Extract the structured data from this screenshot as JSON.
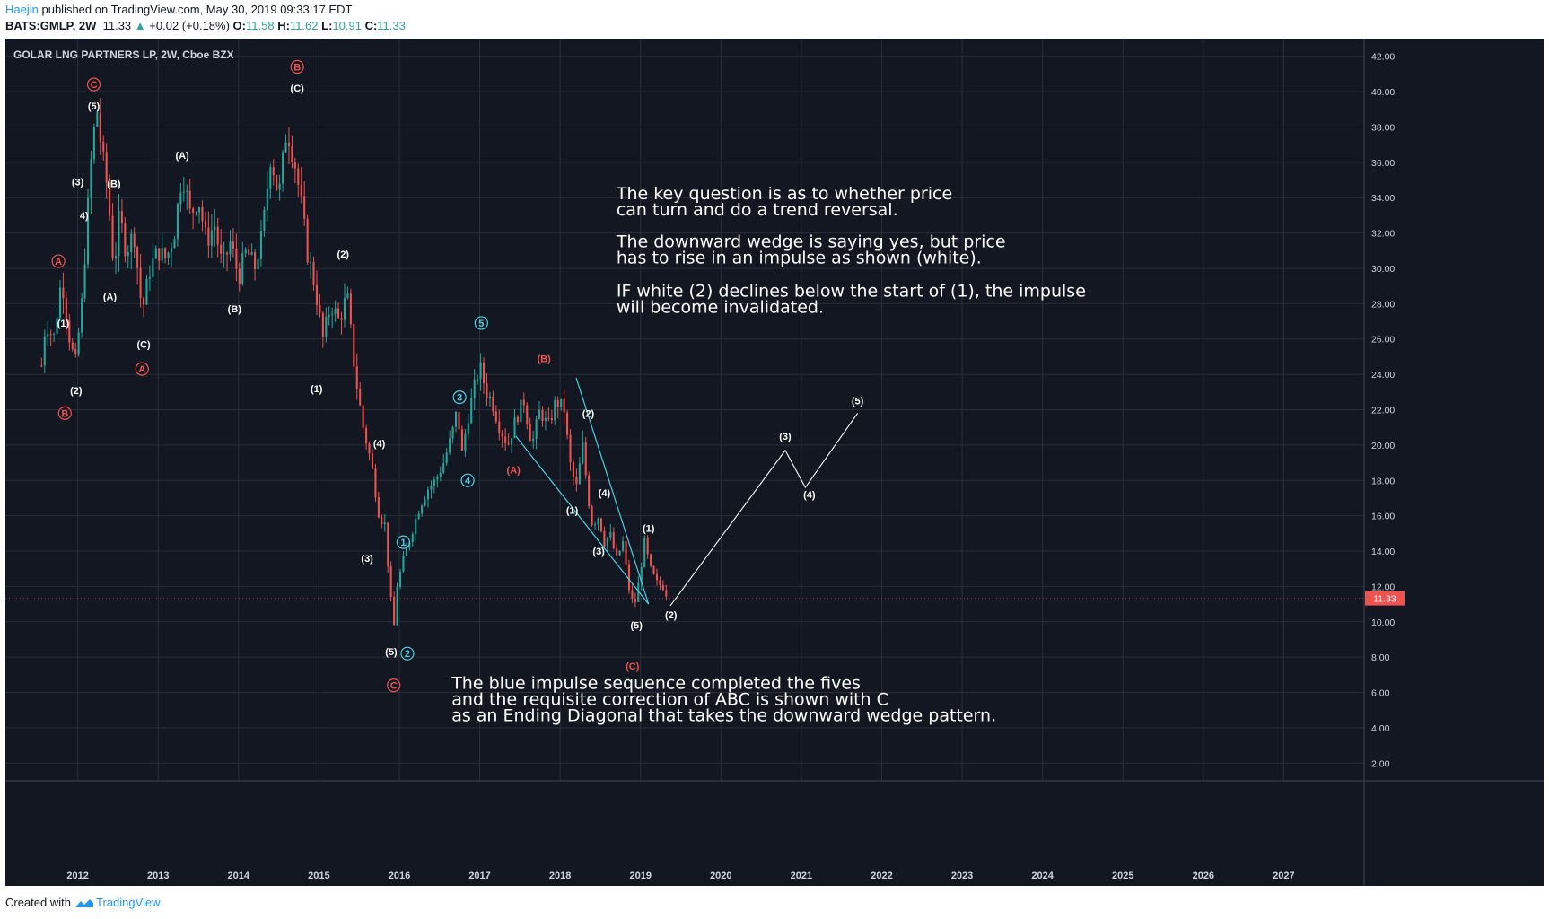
{
  "header": {
    "publisher": "Haejin",
    "published_text": "published on TradingView.com, May 30, 2019 09:33:17 EDT",
    "symbol": "BATS:GMLP, 2W",
    "last": "11.33",
    "change_arrow": "▲",
    "change": "+0.02 (+0.18%)",
    "o_label": "O:",
    "o_value": "11.58",
    "h_label": "H:",
    "h_value": "11.62",
    "l_label": "L:",
    "l_value": "10.91",
    "c_label": "C:",
    "c_value": "11.33"
  },
  "footer": {
    "created_with": "Created with",
    "brand": "TradingView"
  },
  "colors": {
    "background": "#131722",
    "grid": "#2a2e39",
    "up": "#26a69a",
    "down": "#ef5350",
    "wave_white": "#ffffff",
    "wave_red": "#ef5350",
    "wave_cyan": "#4dd0e1",
    "price_tag": "#ef5350"
  },
  "chart_data": {
    "type": "candlestick",
    "title": "GOLAR LNG PARTNERS LP, 2W, Cboe BZX",
    "last_price_label": "11.33",
    "y_range": [
      1,
      43
    ],
    "y_ticks": [
      "2.00",
      "4.00",
      "6.00",
      "8.00",
      "10.00",
      "12.00",
      "14.00",
      "16.00",
      "18.00",
      "20.00",
      "22.00",
      "24.00",
      "26.00",
      "28.00",
      "30.00",
      "32.00",
      "34.00",
      "36.00",
      "38.00",
      "40.00",
      "42.00"
    ],
    "x_range": [
      2011.1,
      2028.0
    ],
    "x_ticks": [
      "2012",
      "2013",
      "2014",
      "2015",
      "2016",
      "2017",
      "2018",
      "2019",
      "2020",
      "2021",
      "2022",
      "2023",
      "2024",
      "2025",
      "2026",
      "2027"
    ],
    "price_path": [
      [
        2011.55,
        24.5
      ],
      [
        2011.6,
        27.0
      ],
      [
        2011.7,
        26.0
      ],
      [
        2011.8,
        29.5
      ],
      [
        2011.9,
        26.0
      ],
      [
        2011.97,
        24.5
      ],
      [
        2012.05,
        28.0
      ],
      [
        2012.12,
        33.0
      ],
      [
        2012.18,
        37.0
      ],
      [
        2012.24,
        39.0
      ],
      [
        2012.3,
        36.5
      ],
      [
        2012.37,
        34.5
      ],
      [
        2012.45,
        30.0
      ],
      [
        2012.52,
        33.0
      ],
      [
        2012.6,
        31.0
      ],
      [
        2012.7,
        32.0
      ],
      [
        2012.8,
        27.5
      ],
      [
        2012.9,
        30.0
      ],
      [
        2013.0,
        31.0
      ],
      [
        2013.1,
        30.5
      ],
      [
        2013.2,
        32.0
      ],
      [
        2013.3,
        35.5
      ],
      [
        2013.4,
        33.0
      ],
      [
        2013.5,
        34.0
      ],
      [
        2013.6,
        31.5
      ],
      [
        2013.7,
        32.5
      ],
      [
        2013.8,
        30.0
      ],
      [
        2013.9,
        31.5
      ],
      [
        2014.0,
        29.5
      ],
      [
        2014.1,
        31.0
      ],
      [
        2014.2,
        30.0
      ],
      [
        2014.3,
        32.0
      ],
      [
        2014.4,
        36.5
      ],
      [
        2014.5,
        34.0
      ],
      [
        2014.6,
        38.0
      ],
      [
        2014.7,
        36.0
      ],
      [
        2014.8,
        33.0
      ],
      [
        2014.85,
        31.0
      ],
      [
        2014.95,
        29.0
      ],
      [
        2015.05,
        26.0
      ],
      [
        2015.15,
        28.0
      ],
      [
        2015.25,
        27.0
      ],
      [
        2015.35,
        28.5
      ],
      [
        2015.45,
        24.0
      ],
      [
        2015.55,
        21.0
      ],
      [
        2015.65,
        19.0
      ],
      [
        2015.75,
        16.0
      ],
      [
        2015.82,
        15.5
      ],
      [
        2015.88,
        12.0
      ],
      [
        2015.93,
        9.5
      ],
      [
        2015.97,
        12.0
      ],
      [
        2016.05,
        13.5
      ],
      [
        2016.15,
        15.0
      ],
      [
        2016.25,
        16.5
      ],
      [
        2016.35,
        17.5
      ],
      [
        2016.45,
        18.0
      ],
      [
        2016.55,
        19.0
      ],
      [
        2016.65,
        20.5
      ],
      [
        2016.72,
        22.0
      ],
      [
        2016.78,
        19.5
      ],
      [
        2016.85,
        21.5
      ],
      [
        2016.92,
        23.0
      ],
      [
        2017.0,
        24.5
      ],
      [
        2017.08,
        23.0
      ],
      [
        2017.15,
        22.5
      ],
      [
        2017.25,
        21.0
      ],
      [
        2017.35,
        20.0
      ],
      [
        2017.45,
        21.5
      ],
      [
        2017.55,
        22.5
      ],
      [
        2017.65,
        20.0
      ],
      [
        2017.75,
        22.0
      ],
      [
        2017.85,
        21.0
      ],
      [
        2017.95,
        22.5
      ],
      [
        2018.05,
        22.0
      ],
      [
        2018.12,
        19.0
      ],
      [
        2018.2,
        17.5
      ],
      [
        2018.28,
        20.0
      ],
      [
        2018.35,
        17.0
      ],
      [
        2018.4,
        15.5
      ],
      [
        2018.48,
        16.0
      ],
      [
        2018.55,
        14.5
      ],
      [
        2018.62,
        15.0
      ],
      [
        2018.7,
        13.5
      ],
      [
        2018.78,
        14.5
      ],
      [
        2018.85,
        12.0
      ],
      [
        2018.92,
        10.8
      ],
      [
        2018.97,
        12.0
      ],
      [
        2019.05,
        14.5
      ],
      [
        2019.12,
        13.0
      ],
      [
        2019.2,
        12.2
      ],
      [
        2019.28,
        12.0
      ],
      [
        2019.35,
        11.3
      ]
    ],
    "projection_path": [
      [
        2019.37,
        10.9
      ],
      [
        2020.8,
        19.7
      ],
      [
        2021.05,
        17.6
      ],
      [
        2021.7,
        21.8
      ]
    ],
    "wedge_lines": [
      {
        "from": [
          2017.45,
          20.5
        ],
        "to": [
          2019.1,
          11.0
        ]
      },
      {
        "from": [
          2018.2,
          23.8
        ],
        "to": [
          2019.1,
          11.0
        ]
      }
    ],
    "wave_labels": [
      {
        "text": "A",
        "style": "red-circle",
        "x": 2011.76,
        "y": 30.2
      },
      {
        "text": "(1)",
        "style": "white",
        "x": 2011.82,
        "y": 26.7
      },
      {
        "text": "(2)",
        "style": "white",
        "x": 2011.98,
        "y": 22.9
      },
      {
        "text": "B",
        "style": "red-circle",
        "x": 2011.84,
        "y": 21.6
      },
      {
        "text": "C",
        "style": "red-circle",
        "x": 2012.2,
        "y": 40.2
      },
      {
        "text": "(5)",
        "style": "white",
        "x": 2012.2,
        "y": 39.0
      },
      {
        "text": "(3)",
        "style": "white",
        "x": 2012.0,
        "y": 34.7
      },
      {
        "text": "(B)",
        "style": "white",
        "x": 2012.45,
        "y": 34.6
      },
      {
        "text": "4)",
        "style": "white",
        "x": 2012.08,
        "y": 32.8
      },
      {
        "text": "(A)",
        "style": "white",
        "x": 2012.4,
        "y": 28.2
      },
      {
        "text": "(C)",
        "style": "white",
        "x": 2012.82,
        "y": 25.5
      },
      {
        "text": "A",
        "style": "red-circle",
        "x": 2012.8,
        "y": 24.1
      },
      {
        "text": "(A)",
        "style": "white",
        "x": 2013.3,
        "y": 36.2
      },
      {
        "text": "(B)",
        "style": "white",
        "x": 2013.95,
        "y": 27.5
      },
      {
        "text": "B",
        "style": "red-circle",
        "x": 2014.73,
        "y": 41.2
      },
      {
        "text": "(C)",
        "style": "white",
        "x": 2014.73,
        "y": 40.0
      },
      {
        "text": "(2)",
        "style": "white",
        "x": 2015.3,
        "y": 30.6
      },
      {
        "text": "(1)",
        "style": "white",
        "x": 2014.97,
        "y": 23.0
      },
      {
        "text": "(4)",
        "style": "white",
        "x": 2015.75,
        "y": 19.9
      },
      {
        "text": "(3)",
        "style": "white",
        "x": 2015.6,
        "y": 13.4
      },
      {
        "text": "(5)",
        "style": "white",
        "x": 2015.9,
        "y": 8.1
      },
      {
        "text": "C",
        "style": "red-circle",
        "x": 2015.93,
        "y": 6.2
      },
      {
        "text": "1",
        "style": "cyan-circle",
        "x": 2016.05,
        "y": 14.3
      },
      {
        "text": "2",
        "style": "cyan-circle",
        "x": 2016.1,
        "y": 8.0
      },
      {
        "text": "3",
        "style": "cyan-circle",
        "x": 2016.75,
        "y": 22.5
      },
      {
        "text": "4",
        "style": "cyan-circle",
        "x": 2016.85,
        "y": 17.8
      },
      {
        "text": "5",
        "style": "cyan-circle",
        "x": 2017.02,
        "y": 26.7
      },
      {
        "text": "(B)",
        "style": "red",
        "x": 2017.8,
        "y": 24.7
      },
      {
        "text": "(A)",
        "style": "red",
        "x": 2017.42,
        "y": 18.4
      },
      {
        "text": "(2)",
        "style": "white",
        "x": 2018.35,
        "y": 21.6
      },
      {
        "text": "(1)",
        "style": "white",
        "x": 2018.15,
        "y": 16.1
      },
      {
        "text": "(4)",
        "style": "white",
        "x": 2018.55,
        "y": 17.1
      },
      {
        "text": "(3)",
        "style": "white",
        "x": 2018.48,
        "y": 13.8
      },
      {
        "text": "(5)",
        "style": "white",
        "x": 2018.95,
        "y": 9.6
      },
      {
        "text": "(C)",
        "style": "red",
        "x": 2018.9,
        "y": 7.3
      },
      {
        "text": "(1)",
        "style": "white",
        "x": 2019.1,
        "y": 15.1
      },
      {
        "text": "(2)",
        "style": "white",
        "x": 2019.38,
        "y": 10.2
      },
      {
        "text": "(3)",
        "style": "white",
        "x": 2020.8,
        "y": 20.3
      },
      {
        "text": "(4)",
        "style": "white",
        "x": 2021.1,
        "y": 17.0
      },
      {
        "text": "(5)",
        "style": "white",
        "x": 2021.7,
        "y": 22.3
      }
    ],
    "annotations": [
      {
        "lines": [
          "The key question is as to whether price",
          "can turn and do a trend reversal."
        ],
        "x": 2018.7,
        "y": 33.9
      },
      {
        "lines": [
          "The downward wedge is saying yes, but price",
          "has to rise in an impulse as shown (white)."
        ],
        "x": 2018.7,
        "y": 31.2
      },
      {
        "lines": [
          "IF white (2) declines below the start of (1), the impulse",
          "will become invalidated."
        ],
        "x": 2018.7,
        "y": 28.4
      },
      {
        "lines": [
          "The blue impulse sequence completed the fives",
          "and the requisite correction of ABC is shown with C",
          "as an Ending Diagonal that takes the downward wedge pattern."
        ],
        "x": 2016.65,
        "y": 6.2
      }
    ]
  }
}
